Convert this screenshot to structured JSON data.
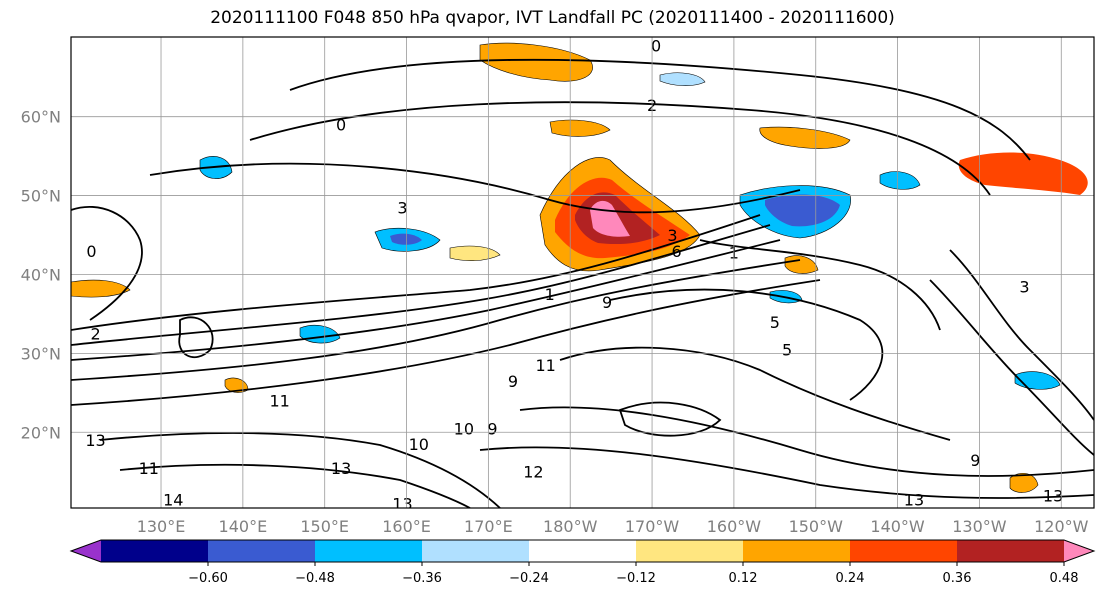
{
  "chart_data": {
    "type": "heatmap",
    "title": "2020111100 F048 850 hPa qvapor, IVT Landfall PC (2020111400 - 2020111600)",
    "y_ticks": [
      "60°N",
      "50°N",
      "40°N",
      "30°N",
      "20°N"
    ],
    "y_values": [
      60,
      50,
      40,
      30,
      20
    ],
    "x_ticks": [
      "130°E",
      "140°E",
      "150°E",
      "160°E",
      "170°E",
      "180°W",
      "170°W",
      "160°W",
      "150°W",
      "140°W",
      "130°W",
      "120°W"
    ],
    "grid": true,
    "colorbar": {
      "levels": [
        -0.6,
        -0.48,
        -0.36,
        -0.24,
        -0.12,
        0.12,
        0.24,
        0.36,
        0.48,
        0.6
      ],
      "labels": [
        "−0.60",
        "−0.48",
        "−0.36",
        "−0.24",
        "−0.12",
        "0.12",
        "0.24",
        "0.36",
        "0.48",
        "0.60"
      ],
      "colors": [
        "#9932cc",
        "#00008b",
        "#3a5bd1",
        "#00bfff",
        "#b0e0ff",
        "#ffffff",
        "#ffe680",
        "#ffa500",
        "#ff4500",
        "#b22222",
        "#ff88bb"
      ],
      "extend": "both",
      "orientation": "horizontal"
    },
    "contour_labels": [
      {
        "text": "0",
        "lon": 190.5,
        "lat": 69
      },
      {
        "text": "2",
        "lon": 190,
        "lat": 61.5
      },
      {
        "text": "0",
        "lon": 152,
        "lat": 59
      },
      {
        "text": "3",
        "lon": 159.5,
        "lat": 48.5
      },
      {
        "text": "3",
        "lon": 192.5,
        "lat": 45
      },
      {
        "text": "6",
        "lon": 193,
        "lat": 43
      },
      {
        "text": "1",
        "lon": 200,
        "lat": 42.8
      },
      {
        "text": "1",
        "lon": 177.5,
        "lat": 37.5
      },
      {
        "text": "5",
        "lon": 205,
        "lat": 34
      },
      {
        "text": "11",
        "lon": 177,
        "lat": 28.5
      },
      {
        "text": "9",
        "lon": 184.5,
        "lat": 36.5
      },
      {
        "text": "9",
        "lon": 173,
        "lat": 26.5
      },
      {
        "text": "9",
        "lon": 170.5,
        "lat": 20.5
      },
      {
        "text": "10",
        "lon": 167,
        "lat": 20.5
      },
      {
        "text": "10",
        "lon": 161.5,
        "lat": 18.5
      },
      {
        "text": "12",
        "lon": 175.5,
        "lat": 15
      },
      {
        "text": "13",
        "lon": 122,
        "lat": 19
      },
      {
        "text": "11",
        "lon": 128.5,
        "lat": 15.5
      },
      {
        "text": "14",
        "lon": 131.5,
        "lat": 11.5
      },
      {
        "text": "13",
        "lon": 152,
        "lat": 15.5
      },
      {
        "text": "13",
        "lon": 159.5,
        "lat": 11
      },
      {
        "text": "13",
        "lon": 222,
        "lat": 11.5
      },
      {
        "text": "13",
        "lon": 239,
        "lat": 12
      },
      {
        "text": "9",
        "lon": 229.5,
        "lat": 16.5
      },
      {
        "text": "3",
        "lon": 235.5,
        "lat": 38.5
      },
      {
        "text": "5",
        "lon": 206.5,
        "lat": 30.5
      },
      {
        "text": "0",
        "lon": 121.5,
        "lat": 43
      },
      {
        "text": "2",
        "lon": 122,
        "lat": 32.5
      },
      {
        "text": "11",
        "lon": 144.5,
        "lat": 24
      }
    ]
  }
}
